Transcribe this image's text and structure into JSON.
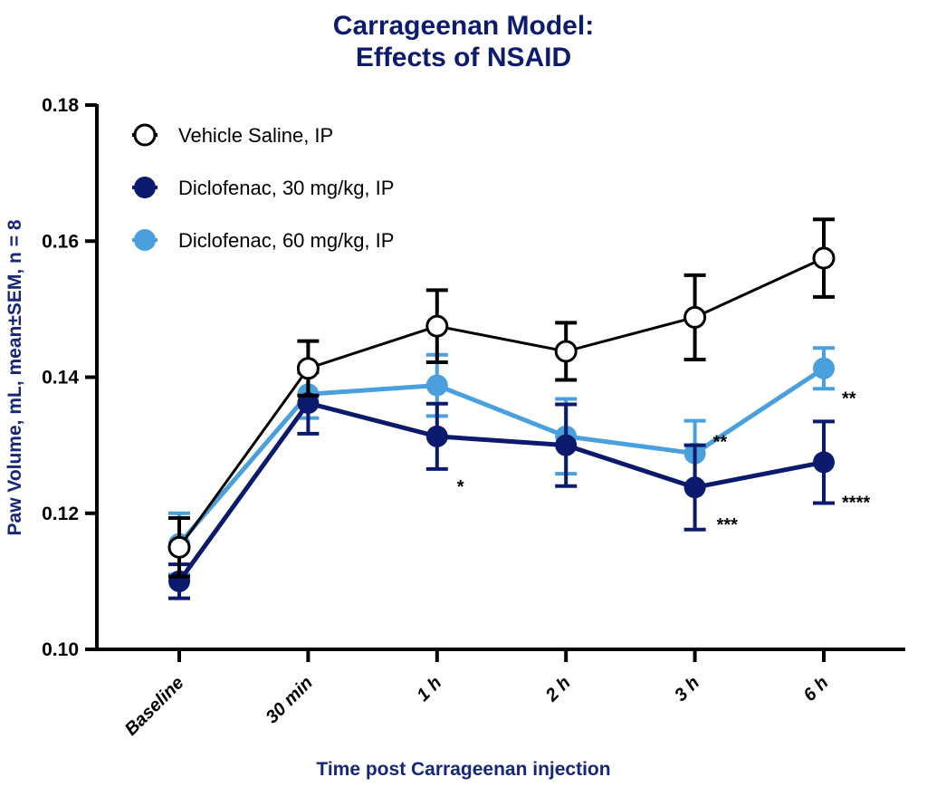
{
  "chart_data": {
    "type": "line",
    "title": [
      "Carrageenan Model:",
      "Effects of NSAID"
    ],
    "xlabel": "Time post Carrageenan injection",
    "ylabel": "Paw Volume, mL, mean±SEM, n = 8",
    "categories": [
      "Baseline",
      "30 min",
      "1 h",
      "2 h",
      "3 h",
      "6 h"
    ],
    "ylim": [
      0.1,
      0.18
    ],
    "yticks": [
      "0.10",
      "0.12",
      "0.14",
      "0.16",
      "0.18"
    ],
    "ytick_values": [
      0.1,
      0.12,
      0.14,
      0.16,
      0.18
    ],
    "grid": false,
    "legend_position": "top-left",
    "series": [
      {
        "name": "Vehicle Saline, IP",
        "color": "#000000",
        "marker": "open-circle",
        "values": [
          0.115,
          0.1413,
          0.1475,
          0.1438,
          0.1488,
          0.1575
        ],
        "sem": [
          0.0043,
          0.004,
          0.0053,
          0.0042,
          0.0062,
          0.0057
        ]
      },
      {
        "name": "Diclofenac, 30 mg/kg, IP",
        "color": "#0c1a6e",
        "marker": "filled-circle",
        "values": [
          0.11,
          0.1362,
          0.1313,
          0.13,
          0.1238,
          0.1275
        ],
        "sem": [
          0.0025,
          0.0045,
          0.0048,
          0.006,
          0.0062,
          0.006
        ]
      },
      {
        "name": "Diclofenac, 60 mg/kg, IP",
        "color": "#4aa0dc",
        "marker": "filled-circle",
        "values": [
          0.1155,
          0.1375,
          0.1388,
          0.1313,
          0.1288,
          0.1413
        ],
        "sem": [
          0.0045,
          0.0035,
          0.0045,
          0.0055,
          0.0048,
          0.003
        ]
      }
    ],
    "annotations": [
      {
        "text": "*",
        "category": "1 h",
        "series": "Diclofenac, 30 mg/kg, IP"
      },
      {
        "text": "**",
        "category": "3 h",
        "series": "Diclofenac, 60 mg/kg, IP"
      },
      {
        "text": "***",
        "category": "3 h",
        "series": "Diclofenac, 30 mg/kg, IP"
      },
      {
        "text": "**",
        "category": "6 h",
        "series": "Diclofenac, 60 mg/kg, IP"
      },
      {
        "text": "****",
        "category": "6 h",
        "series": "Diclofenac, 30 mg/kg, IP"
      }
    ]
  }
}
